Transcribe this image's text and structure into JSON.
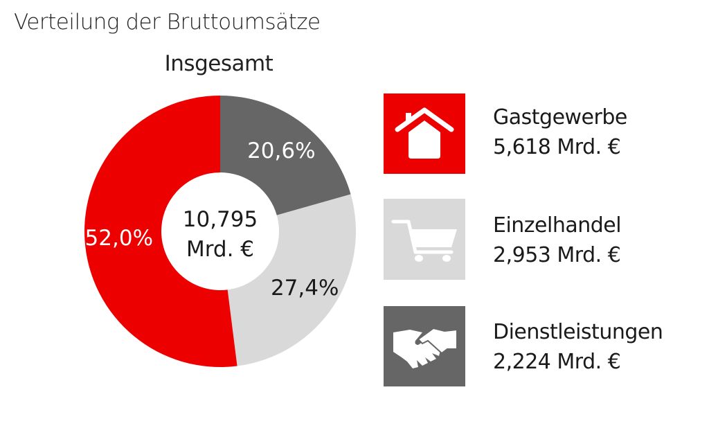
{
  "chart_data": {
    "type": "pie",
    "variant": "donut",
    "title": "Verteilung der Bruttoumsätze",
    "subtitle": "Insgesamt",
    "center_label": [
      "10,795",
      "Mrd. €"
    ],
    "slices": [
      {
        "name": "Dienstleistungen",
        "value": 2.224,
        "percent": 20.6,
        "label": "20,6%",
        "color": "#666666",
        "label_color": "#ffffff",
        "amount": "2,224 Mrd. €",
        "icon": "handshake-icon"
      },
      {
        "name": "Einzelhandel",
        "value": 2.953,
        "percent": 27.4,
        "label": "27,4%",
        "color": "#d9d9d9",
        "label_color": "#1a1a1a",
        "amount": "2,953 Mrd. €",
        "icon": "shopping-cart-icon"
      },
      {
        "name": "Gastgewerbe",
        "value": 5.618,
        "percent": 52.0,
        "label": "52,0%",
        "color": "#ec0000",
        "label_color": "#ffffff",
        "amount": "5,618 Mrd. €",
        "icon": "house-icon"
      }
    ],
    "legend": [
      {
        "name": "Gastgewerbe",
        "amount": "5,618 Mrd. €",
        "color": "#ec0000",
        "icon": "house-icon"
      },
      {
        "name": "Einzelhandel",
        "amount": "2,953 Mrd. €",
        "color": "#d9d9d9",
        "icon": "shopping-cart-icon"
      },
      {
        "name": "Dienstleistungen",
        "amount": "2,224 Mrd. €",
        "color": "#666666",
        "icon": "handshake-icon"
      }
    ],
    "legend_placement": "right"
  }
}
